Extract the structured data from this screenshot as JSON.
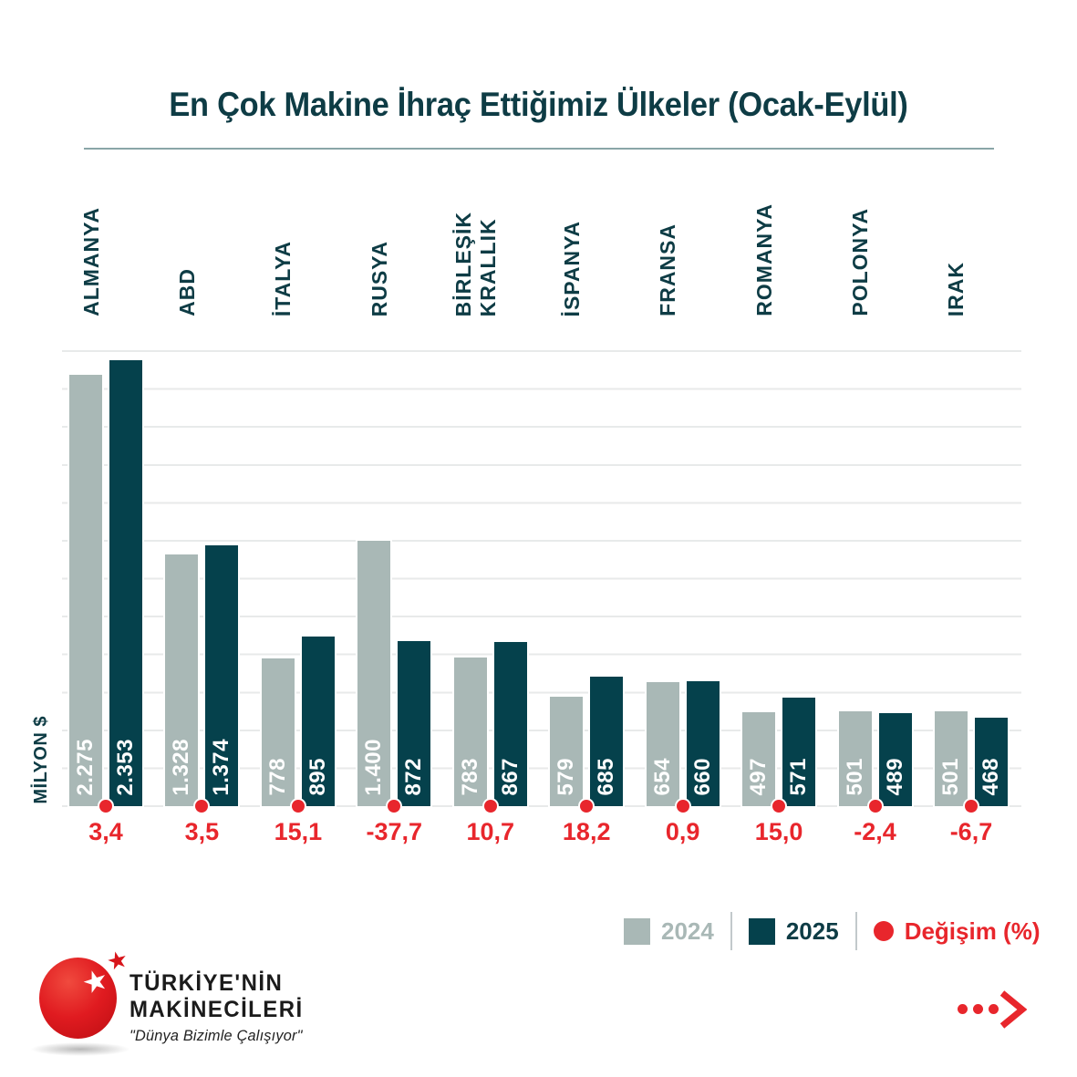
{
  "title": "En Çok Makine İhraç Ettiğimiz Ülkeler (Ocak-Eylül)",
  "colors": {
    "bar_2024": "#a9b8b6",
    "bar_2025": "#05414c",
    "change_red": "#e8262c",
    "heading_teal": "#0e3c45",
    "gridline": "#e8eaea",
    "title_rule": "#8aa5a7"
  },
  "chart_data": {
    "type": "bar",
    "title": "En Çok Makine İhraç Ettiğimiz Ülkeler (Ocak-Eylül)",
    "categories": [
      "ALMANYA",
      "ABD",
      "İTALYA",
      "RUSYA",
      "BİRLEŞİK\nKRALLIK",
      "İSPANYA",
      "FRANSA",
      "ROMANYA",
      "POLONYA",
      "IRAK"
    ],
    "series": [
      {
        "name": "2024",
        "values": [
          2275,
          1328,
          778,
          1400,
          783,
          579,
          654,
          497,
          501,
          501
        ],
        "labels": [
          "2.275",
          "1.328",
          "778",
          "1.400",
          "783",
          "579",
          "654",
          "497",
          "501",
          "501"
        ]
      },
      {
        "name": "2025",
        "values": [
          2353,
          1374,
          895,
          872,
          867,
          685,
          660,
          571,
          489,
          468
        ],
        "labels": [
          "2.353",
          "1.374",
          "895",
          "872",
          "867",
          "685",
          "660",
          "571",
          "489",
          "468"
        ]
      }
    ],
    "change_percent": [
      "3,4",
      "3,5",
      "15,1",
      "-37,7",
      "10,7",
      "18,2",
      "0,9",
      "15,0",
      "-2,4",
      "-6,7"
    ],
    "ylabel": "MİLYON $",
    "xlabel": "",
    "ylim": [
      0,
      2400
    ],
    "grid_step": 200,
    "grid": true,
    "legend_position": "bottom-right"
  },
  "legend": {
    "items": [
      {
        "label": "2024",
        "type": "swatch",
        "color": "#a9b8b6"
      },
      {
        "label": "2025",
        "type": "swatch",
        "color": "#05414c"
      },
      {
        "label": "Değişim (%)",
        "type": "dot",
        "color": "#e8262c"
      }
    ]
  },
  "logo": {
    "line1": "TÜRKİYE'NİN",
    "line2": "MAKİNECİLERİ",
    "tagline": "\"Dünya Bizimle Çalışıyor\"",
    "star": "★"
  }
}
